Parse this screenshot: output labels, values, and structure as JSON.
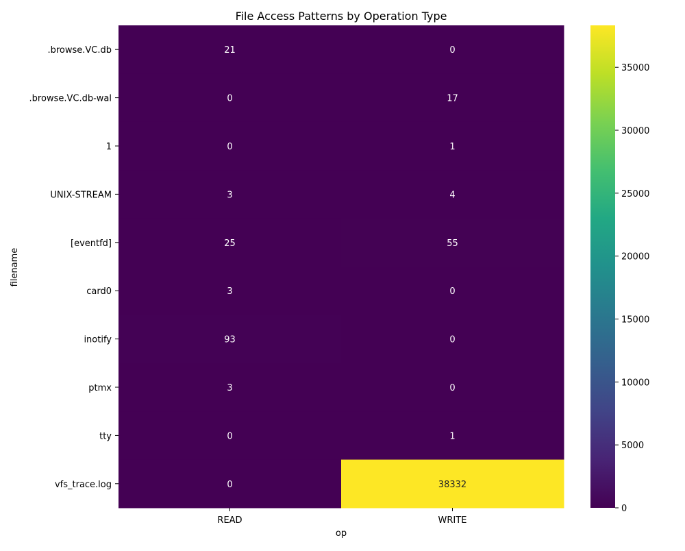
{
  "chart_data": {
    "type": "heatmap",
    "title": "File Access Patterns by Operation Type",
    "xlabel": "op",
    "ylabel": "filename",
    "x_categories": [
      "READ",
      "WRITE"
    ],
    "y_categories": [
      ".browse.VC.db",
      ".browse.VC.db-wal",
      "1",
      "UNIX-STREAM",
      "[eventfd]",
      "card0",
      "inotify",
      "ptmx",
      "tty",
      "vfs_trace.log"
    ],
    "values": [
      [
        21,
        0
      ],
      [
        0,
        17
      ],
      [
        0,
        1
      ],
      [
        3,
        4
      ],
      [
        25,
        55
      ],
      [
        3,
        0
      ],
      [
        93,
        0
      ],
      [
        3,
        0
      ],
      [
        0,
        1
      ],
      [
        0,
        38332
      ]
    ],
    "colormap": "viridis",
    "color_min": 0,
    "color_max": 38332,
    "colorbar_ticks": [
      0,
      5000,
      10000,
      15000,
      20000,
      25000,
      30000,
      35000
    ],
    "annotations": true,
    "grid": false
  }
}
